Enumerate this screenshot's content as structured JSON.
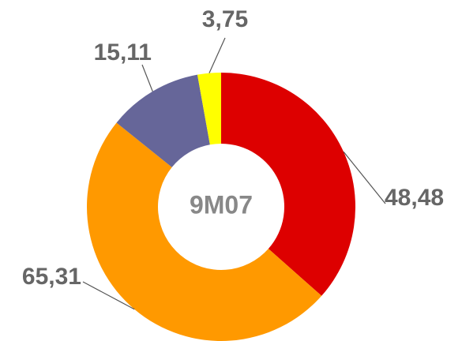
{
  "chart_data": {
    "type": "donut",
    "center_label": "9M07",
    "values": [
      48.48,
      65.31,
      15.11,
      3.75
    ],
    "value_labels": [
      "48,48",
      "65,31",
      "15,11",
      "3,75"
    ],
    "colors": [
      "#dd0000",
      "#ff9900",
      "#666699",
      "#ffff00"
    ]
  }
}
